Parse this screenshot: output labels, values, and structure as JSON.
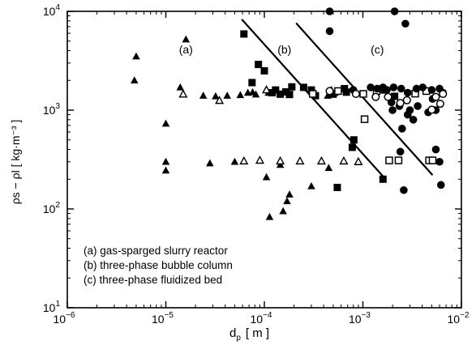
{
  "chart_data": {
    "type": "scatter",
    "xscale": "log",
    "yscale": "log",
    "xlim": [
      1e-06,
      0.01
    ],
    "ylim": [
      10,
      10000
    ],
    "xlabel_main": "d",
    "xlabel_sub": "p",
    "xlabel_unit": "[ m ]",
    "ylabel": "ρs − ρl  [ kg·m⁻³ ]",
    "x_ticks": [
      {
        "value": 1e-06,
        "base": "10",
        "exp": "−6"
      },
      {
        "value": 1e-05,
        "base": "10",
        "exp": "−5"
      },
      {
        "value": 0.0001,
        "base": "10",
        "exp": "−4"
      },
      {
        "value": 0.001,
        "base": "10",
        "exp": "−3"
      },
      {
        "value": 0.01,
        "base": "10",
        "exp": "−2"
      }
    ],
    "y_ticks": [
      {
        "value": 10,
        "base": "10",
        "exp": "1"
      },
      {
        "value": 100,
        "base": "10",
        "exp": "2"
      },
      {
        "value": 1000,
        "base": "10",
        "exp": "3"
      },
      {
        "value": 10000,
        "base": "10",
        "exp": "4"
      }
    ],
    "region_labels": [
      {
        "text": "(a)",
        "x": 1.6e-05,
        "y": 4100
      },
      {
        "text": "(b)",
        "x": 0.00016,
        "y": 4100
      },
      {
        "text": "(c)",
        "x": 0.0014,
        "y": 4100
      }
    ],
    "legend": [
      "(a) gas-sparged slurry reactor",
      "(b) three-phase bubble column",
      "(c) three-phase fluidized bed"
    ],
    "boundary_lines": [
      {
        "from": [
          5.9e-05,
          8300
        ],
        "to": [
          0.0017,
          200
        ]
      },
      {
        "from": [
          0.00021,
          7600
        ],
        "to": [
          0.0051,
          220
        ]
      }
    ],
    "series": [
      {
        "marker": "filled-triangle",
        "points": [
          [
            5e-06,
            3500
          ],
          [
            4.8e-06,
            2000
          ],
          [
            1.6e-05,
            5200
          ],
          [
            1.4e-05,
            1700
          ],
          [
            1e-05,
            730
          ],
          [
            1e-05,
            300
          ],
          [
            1e-05,
            245
          ],
          [
            2.4e-05,
            1400
          ],
          [
            2.8e-05,
            290
          ],
          [
            3.2e-05,
            1380
          ],
          [
            4.2e-05,
            1400
          ],
          [
            5e-05,
            300
          ],
          [
            5.7e-05,
            1420
          ],
          [
            6.8e-05,
            1500
          ],
          [
            7.6e-05,
            1520
          ],
          [
            8.2e-05,
            1440
          ],
          [
            0.000105,
            210
          ],
          [
            0.000113,
            83
          ],
          [
            0.000145,
            280
          ],
          [
            0.000155,
            95
          ],
          [
            0.00017,
            120
          ],
          [
            0.00018,
            140
          ],
          [
            0.0003,
            170
          ],
          [
            0.00045,
            260
          ],
          [
            0.00048,
            1600
          ],
          [
            0.00052,
            1500
          ],
          [
            0.00044,
            1400
          ],
          [
            0.00011,
            1500
          ]
        ]
      },
      {
        "marker": "open-triangle",
        "points": [
          [
            1.5e-05,
            1450
          ],
          [
            3.5e-05,
            1250
          ],
          [
            6.2e-05,
            305
          ],
          [
            9e-05,
            310
          ],
          [
            0.000145,
            305
          ],
          [
            0.00023,
            305
          ],
          [
            0.00038,
            305
          ],
          [
            0.00064,
            305
          ],
          [
            0.0009,
            300
          ],
          [
            0.000105,
            1600
          ]
        ]
      },
      {
        "marker": "filled-square",
        "points": [
          [
            6.2e-05,
            5900
          ],
          [
            7.5e-05,
            1900
          ],
          [
            8.7e-05,
            2900
          ],
          [
            0.0001,
            2500
          ],
          [
            0.00012,
            1500
          ],
          [
            0.00013,
            1600
          ],
          [
            0.000145,
            1450
          ],
          [
            0.000165,
            1530
          ],
          [
            0.00018,
            1440
          ],
          [
            0.00019,
            1720
          ],
          [
            0.00025,
            1700
          ],
          [
            0.0003,
            1600
          ],
          [
            0.00033,
            1400
          ],
          [
            0.00055,
            165
          ],
          [
            0.0005,
            1450
          ],
          [
            0.00065,
            1650
          ],
          [
            0.00068,
            1520
          ],
          [
            0.00081,
            500
          ],
          [
            0.00078,
            420
          ],
          [
            0.0016,
            200
          ],
          [
            0.00165,
            1600
          ],
          [
            0.0021,
            1380
          ]
        ]
      },
      {
        "marker": "open-square",
        "points": [
          [
            0.00031,
            1460
          ],
          [
            0.00056,
            1560
          ],
          [
            0.00101,
            1460
          ],
          [
            0.00104,
            810
          ],
          [
            0.00138,
            1560
          ],
          [
            0.00185,
            310
          ],
          [
            0.0023,
            310
          ],
          [
            0.0034,
            1470
          ],
          [
            0.0044,
            1560
          ],
          [
            0.0047,
            310
          ],
          [
            0.0051,
            310
          ]
        ]
      },
      {
        "marker": "filled-circle",
        "points": [
          [
            0.00046,
            10000
          ],
          [
            0.0021,
            10000
          ],
          [
            0.0027,
            7500
          ],
          [
            0.00046,
            6300
          ],
          [
            0.0008,
            1600
          ],
          [
            0.0012,
            1700
          ],
          [
            0.0014,
            1650
          ],
          [
            0.0016,
            1700
          ],
          [
            0.00175,
            1600
          ],
          [
            0.00205,
            1700
          ],
          [
            0.00245,
            1650
          ],
          [
            0.00285,
            1500
          ],
          [
            0.0035,
            1650
          ],
          [
            0.00405,
            1700
          ],
          [
            0.005,
            1600
          ],
          [
            0.006,
            1650
          ],
          [
            0.0065,
            1500
          ],
          [
            0.00195,
            1200
          ],
          [
            0.00235,
            1100
          ],
          [
            0.00285,
            900
          ],
          [
            0.00325,
            800
          ],
          [
            0.002,
            1000
          ],
          [
            0.0025,
            650
          ],
          [
            0.003,
            1000
          ],
          [
            0.0036,
            1100
          ],
          [
            0.0046,
            950
          ],
          [
            0.0055,
            1000
          ],
          [
            0.0055,
            400
          ],
          [
            0.006,
            300
          ],
          [
            0.0024,
            380
          ],
          [
            0.0026,
            155
          ],
          [
            0.0062,
            175
          ],
          [
            0.0051,
            1300
          ]
        ]
      },
      {
        "marker": "open-circle",
        "points": [
          [
            0.00046,
            1560
          ],
          [
            0.00085,
            1460
          ],
          [
            0.00135,
            1360
          ],
          [
            0.0018,
            1360
          ],
          [
            0.0024,
            1180
          ],
          [
            0.0028,
            1260
          ],
          [
            0.0055,
            1360
          ],
          [
            0.0065,
            1460
          ],
          [
            0.0061,
            1160
          ],
          [
            0.005,
            1010
          ]
        ]
      }
    ]
  }
}
